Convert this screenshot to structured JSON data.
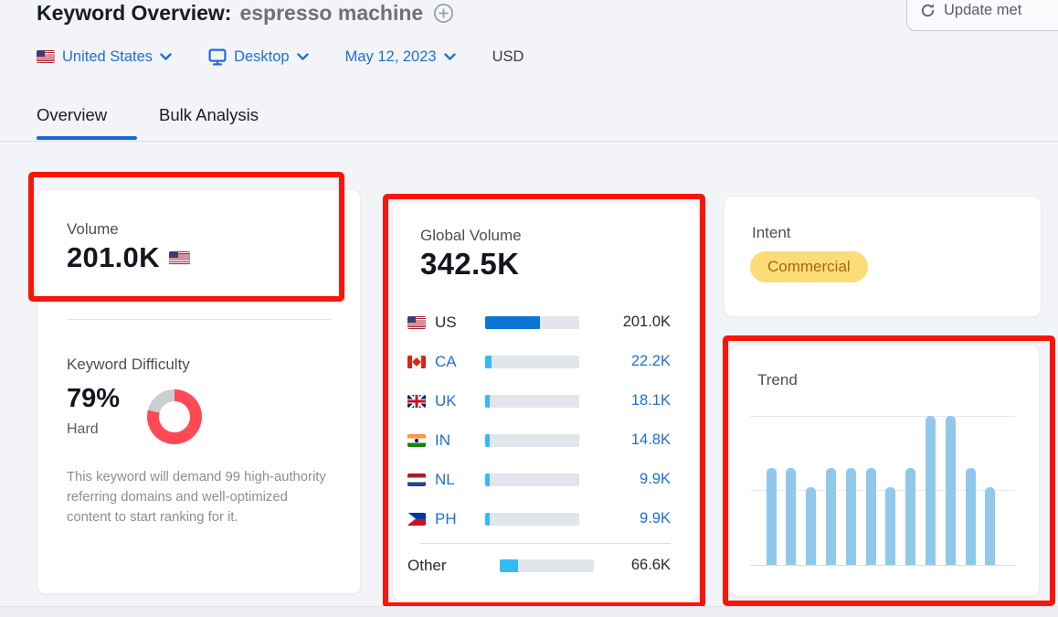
{
  "colors": {
    "page_bg": "#f3f4f8",
    "link_blue": "#1d6fd8",
    "tab_underline": "#156bd9",
    "annotation_red": "#f8150a",
    "difficulty_red": "#fe4a55",
    "difficulty_track": "#c9cdd4",
    "bar_primary_blue": "#0b75d6",
    "bar_sky_blue": "#35baf5",
    "bar_track": "#e2e5ec",
    "trend_bar_blue": "#90c8ec",
    "intent_badge_bg": "#fbdc79",
    "intent_badge_text": "#a5690d"
  },
  "header": {
    "title": "Keyword Overview:",
    "keyword": "espresso machine",
    "update_button_label": "Update met"
  },
  "filters": {
    "country": "United States",
    "country_flag": "us",
    "device": "Desktop",
    "date": "May 12, 2023",
    "currency": "USD"
  },
  "tabs": {
    "overview": "Overview",
    "bulk": "Bulk Analysis"
  },
  "volume": {
    "label": "Volume",
    "value": "201.0K",
    "flag": "us"
  },
  "difficulty": {
    "label": "Keyword Difficulty",
    "percent": "79%",
    "percent_value": 79,
    "level": "Hard",
    "description": "This keyword will demand 99 high-authority referring domains and well-optimized content to start ranking for it."
  },
  "global_volume": {
    "label": "Global Volume",
    "value": "342.5K",
    "rows": [
      {
        "code": "US",
        "flag": "us",
        "value": "201.0K",
        "pct": 58.7,
        "link": false
      },
      {
        "code": "CA",
        "flag": "ca",
        "value": "22.2K",
        "pct": 6.5,
        "link": true
      },
      {
        "code": "UK",
        "flag": "uk",
        "value": "18.1K",
        "pct": 5.3,
        "link": true
      },
      {
        "code": "IN",
        "flag": "in",
        "value": "14.8K",
        "pct": 4.3,
        "link": true
      },
      {
        "code": "NL",
        "flag": "nl",
        "value": "9.9K",
        "pct": 2.9,
        "link": true
      },
      {
        "code": "PH",
        "flag": "ph",
        "value": "9.9K",
        "pct": 2.9,
        "link": true
      },
      {
        "code": "Other",
        "flag": "",
        "value": "66.6K",
        "pct": 19.4,
        "link": false
      }
    ]
  },
  "intent": {
    "label": "Intent",
    "badge": "Commercial"
  },
  "trend": {
    "label": "Trend"
  },
  "chart_data": [
    {
      "type": "bar",
      "title": "Trend",
      "x": [
        1,
        2,
        3,
        4,
        5,
        6,
        7,
        8,
        9,
        10,
        11,
        12
      ],
      "values": [
        65,
        65,
        52,
        65,
        65,
        65,
        52,
        65,
        100,
        100,
        65,
        52
      ],
      "note": "12 monthly bars, relative height percent of tallest bar; no axis tick labels shown",
      "ylim": [
        0,
        100
      ],
      "grid": "3 horizontal gridlines (top, middle, baseline)"
    },
    {
      "type": "pie",
      "title": "Keyword Difficulty",
      "labels": [
        "difficulty",
        "remainder"
      ],
      "values": [
        79,
        21
      ],
      "colors": [
        "#fe4a55",
        "#c9cdd4"
      ]
    },
    {
      "type": "bar",
      "title": "Global Volume by Country",
      "categories": [
        "US",
        "CA",
        "UK",
        "IN",
        "NL",
        "PH",
        "Other"
      ],
      "values_k": [
        201.0,
        22.2,
        18.1,
        14.8,
        9.9,
        9.9,
        66.6
      ],
      "unit": "K",
      "total": "342.5K"
    }
  ]
}
